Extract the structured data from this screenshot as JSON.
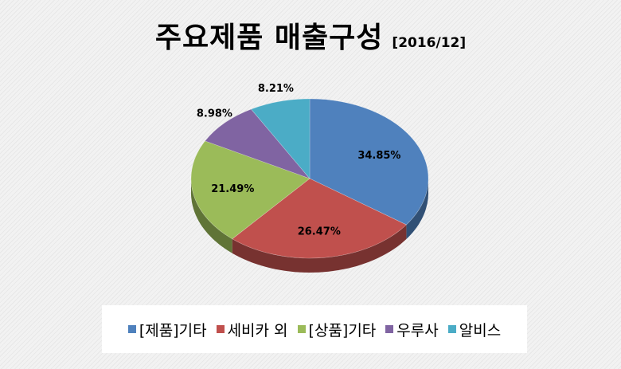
{
  "chart_data": {
    "type": "pie",
    "title": "주요제품 매출구성",
    "subtitle": "[2016/12]",
    "categories": [
      "[제품]기타",
      "세비카 외",
      "[상품]기타",
      "우루사",
      "알비스"
    ],
    "values": [
      34.85,
      26.47,
      21.49,
      8.98,
      8.21
    ],
    "labels": [
      "34.85%",
      "26.47%",
      "21.49%",
      "8.98%",
      "8.21%"
    ],
    "colors": [
      "#4f81bd",
      "#c0504d",
      "#9bbb59",
      "#8064a2",
      "#4bacc6"
    ],
    "legend_position": "bottom",
    "style": "3d"
  }
}
